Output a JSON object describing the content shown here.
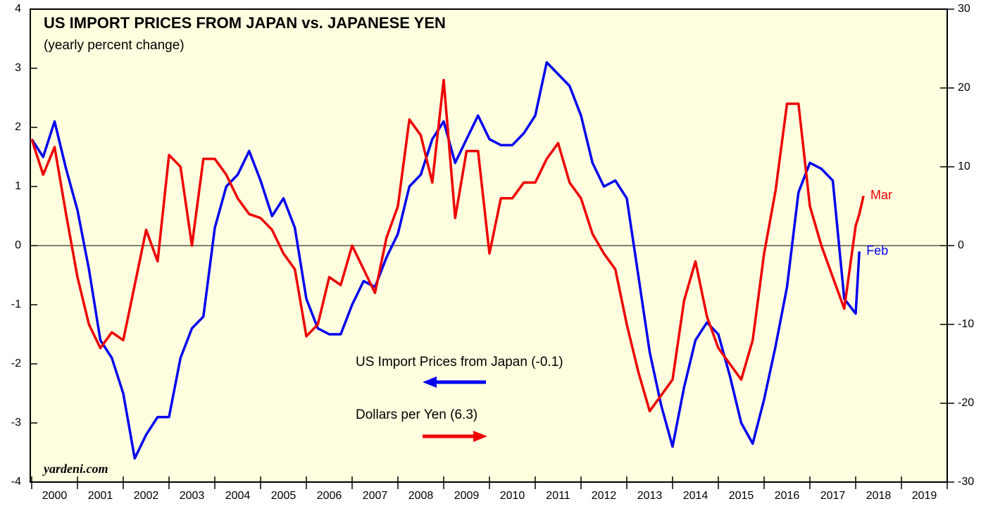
{
  "chart_data": {
    "type": "line",
    "title": "US IMPORT PRICES FROM JAPAN vs. JAPANESE YEN",
    "subtitle": "(yearly percent change)",
    "source": "yardeni.com",
    "xlim": [
      2000,
      2020
    ],
    "xticks": [
      2000,
      2001,
      2002,
      2003,
      2004,
      2005,
      2006,
      2007,
      2008,
      2009,
      2010,
      2011,
      2012,
      2013,
      2014,
      2015,
      2016,
      2017,
      2018,
      2019,
      2020
    ],
    "xtick_labels": [
      "2000",
      "2001",
      "2002",
      "2003",
      "2004",
      "2005",
      "2006",
      "2007",
      "2008",
      "2009",
      "2010",
      "2011",
      "2012",
      "2013",
      "2014",
      "2015",
      "2016",
      "2017",
      "2018",
      "2019"
    ],
    "ylim": [
      -4,
      4
    ],
    "yticks": [
      -4,
      -3,
      -2,
      -1,
      0,
      1,
      2,
      3,
      4
    ],
    "y2lim": [
      -30,
      30
    ],
    "y2ticks": [
      -30,
      -20,
      -10,
      0,
      10,
      20,
      30
    ],
    "series": [
      {
        "name": "US Import Prices from Japan (-0.1)",
        "color": "#0000ee",
        "axis": "y",
        "end_label": "Feb",
        "x": [
          2000,
          2000.25,
          2000.5,
          2000.75,
          2001,
          2001.25,
          2001.5,
          2001.75,
          2002,
          2002.25,
          2002.5,
          2002.75,
          2003,
          2003.25,
          2003.5,
          2003.75,
          2004,
          2004.25,
          2004.5,
          2004.75,
          2005,
          2005.25,
          2005.5,
          2005.75,
          2006,
          2006.25,
          2006.5,
          2006.75,
          2007,
          2007.25,
          2007.5,
          2007.75,
          2008,
          2008.25,
          2008.5,
          2008.75,
          2009,
          2009.25,
          2009.5,
          2009.75,
          2010,
          2010.25,
          2010.5,
          2010.75,
          2011,
          2011.25,
          2011.5,
          2011.75,
          2012,
          2012.25,
          2012.5,
          2012.75,
          2013,
          2013.25,
          2013.5,
          2013.75,
          2014,
          2014.25,
          2014.5,
          2014.75,
          2015,
          2015.25,
          2015.5,
          2015.75,
          2016,
          2016.25,
          2016.5,
          2016.75,
          2017,
          2017.25,
          2017.5,
          2017.75,
          2018,
          2018.08
        ],
        "values": [
          1.8,
          1.5,
          2.1,
          1.3,
          0.6,
          -0.4,
          -1.6,
          -1.9,
          -2.5,
          -3.6,
          -3.2,
          -2.9,
          -2.9,
          -1.9,
          -1.4,
          -1.2,
          0.3,
          1.0,
          1.2,
          1.6,
          1.1,
          0.5,
          0.8,
          0.3,
          -0.9,
          -1.4,
          -1.5,
          -1.5,
          -1.0,
          -0.6,
          -0.7,
          -0.2,
          0.2,
          1.0,
          1.2,
          1.8,
          2.1,
          1.4,
          1.8,
          2.2,
          1.8,
          1.7,
          1.7,
          1.9,
          2.2,
          3.1,
          2.9,
          2.7,
          2.2,
          1.4,
          1.0,
          1.1,
          0.8,
          -0.5,
          -1.8,
          -2.7,
          -3.4,
          -2.4,
          -1.6,
          -1.3,
          -1.5,
          -2.2,
          -3.0,
          -3.35,
          -2.6,
          -1.7,
          -0.7,
          0.9,
          1.4,
          1.3,
          1.1,
          -0.9,
          -1.15,
          -0.1
        ]
      },
      {
        "name": "Dollars per Yen (6.3)",
        "color": "#ee0000",
        "axis": "y2",
        "end_label": "Mar",
        "x": [
          2000,
          2000.25,
          2000.5,
          2000.75,
          2001,
          2001.25,
          2001.5,
          2001.75,
          2002,
          2002.25,
          2002.5,
          2002.75,
          2003,
          2003.25,
          2003.5,
          2003.75,
          2004,
          2004.25,
          2004.5,
          2004.75,
          2005,
          2005.25,
          2005.5,
          2005.75,
          2006,
          2006.25,
          2006.5,
          2006.75,
          2007,
          2007.25,
          2007.5,
          2007.75,
          2008,
          2008.25,
          2008.5,
          2008.75,
          2009,
          2009.25,
          2009.5,
          2009.75,
          2010,
          2010.25,
          2010.5,
          2010.75,
          2011,
          2011.25,
          2011.5,
          2011.75,
          2012,
          2012.25,
          2012.5,
          2012.75,
          2013,
          2013.25,
          2013.5,
          2013.75,
          2014,
          2014.25,
          2014.5,
          2014.75,
          2015,
          2015.25,
          2015.5,
          2015.75,
          2016,
          2016.25,
          2016.5,
          2016.75,
          2017,
          2017.25,
          2017.5,
          2017.75,
          2018,
          2018.08,
          2018.17
        ],
        "values": [
          13.5,
          9,
          12.5,
          4,
          -4,
          -10,
          -13,
          -11,
          -12,
          -5,
          2,
          -2,
          11.5,
          10,
          0,
          11,
          11,
          9,
          6,
          4,
          3.5,
          2,
          -1,
          -3,
          -11.5,
          -10,
          -4,
          -5,
          0,
          -3,
          -6,
          1,
          5,
          16,
          14,
          8,
          21,
          3.5,
          12,
          12,
          -1,
          6,
          6,
          8,
          8,
          11,
          13,
          8,
          6,
          1.5,
          -1,
          -3,
          -10,
          -16,
          -21,
          -19,
          -17,
          -7,
          -2,
          -9,
          -13,
          -15,
          -17,
          -12,
          -1,
          7,
          18,
          18,
          5,
          0,
          -4,
          -8,
          2.5,
          4,
          6.3
        ]
      }
    ]
  }
}
